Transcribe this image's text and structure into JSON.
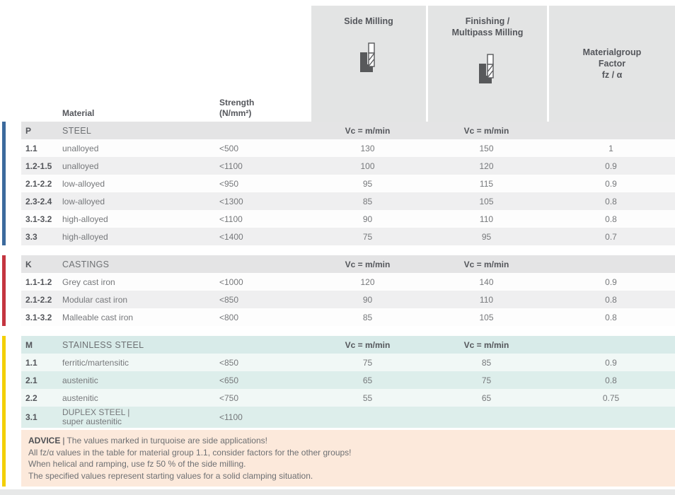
{
  "header": {
    "side_milling_title": "Side Milling",
    "finishing_title_line1": "Finishing /",
    "finishing_title_line2": "Multipass Milling",
    "factor_title_line1": "Materialgroup",
    "factor_title_line2": "Factor",
    "factor_title_line3": "fz / α",
    "material_col": "Material",
    "strength_col_line1": "Strength",
    "strength_col_line2": "(N/mm²)",
    "vc_label": "Vc = m/min"
  },
  "colors": {
    "steel_bar": "#3c6a9d",
    "castings_bar": "#c43540",
    "stainless_bar": "#f3cf04",
    "header_box_gray": "#e3e4e4",
    "section_row_gray": "#e4e4e5",
    "stripe_gray": "#efeff0",
    "turquoise_header": "#d8ebe9",
    "turquoise_light": "#f1f8f6",
    "turquoise_dark": "#ddeeeb",
    "advice_bg": "#fce9db"
  },
  "sections": [
    {
      "id": "P",
      "name": "STEEL",
      "turquoise": false,
      "rows": [
        {
          "group": "1.1",
          "material": "unalloyed",
          "strength": "<500",
          "side": "130",
          "finish": "150",
          "factor": "1"
        },
        {
          "group": "1.2-1.5",
          "material": "unalloyed",
          "strength": "<1100",
          "side": "100",
          "finish": "120",
          "factor": "0.9"
        },
        {
          "group": "2.1-2.2",
          "material": "low-alloyed",
          "strength": "<950",
          "side": "95",
          "finish": "115",
          "factor": "0.9"
        },
        {
          "group": "2.3-2.4",
          "material": "low-alloyed",
          "strength": "<1300",
          "side": "85",
          "finish": "105",
          "factor": "0.8"
        },
        {
          "group": "3.1-3.2",
          "material": "high-alloyed",
          "strength": "<1100",
          "side": "90",
          "finish": "110",
          "factor": "0.8"
        },
        {
          "group": "3.3",
          "material": "high-alloyed",
          "strength": "<1400",
          "side": "75",
          "finish": "95",
          "factor": "0.7"
        }
      ]
    },
    {
      "id": "K",
      "name": "CASTINGS",
      "turquoise": false,
      "rows": [
        {
          "group": "1.1-1.2",
          "material": "Grey cast iron",
          "strength": "<1000",
          "side": "120",
          "finish": "140",
          "factor": "0.9"
        },
        {
          "group": "2.1-2.2",
          "material": "Modular cast iron",
          "strength": "<850",
          "side": "90",
          "finish": "110",
          "factor": "0.8"
        },
        {
          "group": "3.1-3.2",
          "material": "Malleable cast iron",
          "strength": "<800",
          "side": "85",
          "finish": "105",
          "factor": "0.8"
        }
      ]
    },
    {
      "id": "M",
      "name": "STAINLESS STEEL",
      "turquoise": true,
      "rows": [
        {
          "group": "1.1",
          "material": "ferritic/martensitic",
          "strength": "<850",
          "side": "75",
          "finish": "85",
          "factor": "0.9"
        },
        {
          "group": "2.1",
          "material": "austenitic",
          "strength": "<650",
          "side": "65",
          "finish": "75",
          "factor": "0.8"
        },
        {
          "group": "2.2",
          "material": "austenitic",
          "strength": "<750",
          "side": "55",
          "finish": "65",
          "factor": "0.75"
        },
        {
          "group": "3.1",
          "material": "DUPLEX STEEL |",
          "material_line2": "super austenitic",
          "strength": "<1100",
          "side": "",
          "finish": "",
          "factor": ""
        }
      ]
    }
  ],
  "advice": {
    "label": "ADVICE",
    "separator": "|",
    "line1": "The values marked in turquoise are side applications!",
    "line2": "All fz/α values in the table for material group 1.1, consider factors for the other groups!",
    "line3": "When helical and ramping, use fz 50 % of the side milling.",
    "line4": "The specified values represent starting values for a solid clamping situation."
  }
}
